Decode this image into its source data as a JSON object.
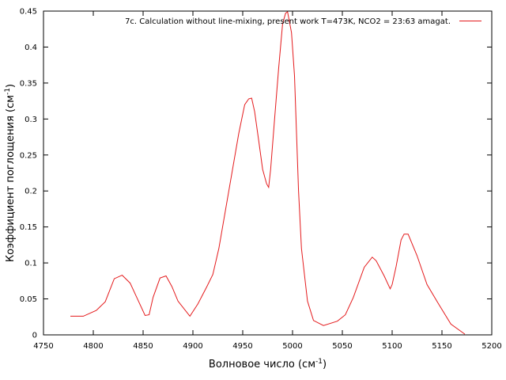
{
  "chart_data": {
    "type": "line",
    "xlabel": "Волновое число (см",
    "xlabel_sup": "-1",
    "xlabel_end": ")",
    "ylabel": "Коэффициент поглощения (см",
    "ylabel_sup": "-1",
    "ylabel_end": ")",
    "xlim": [
      4750,
      5200
    ],
    "ylim": [
      0,
      0.45
    ],
    "xticks": [
      "4750",
      "4800",
      "4850",
      "4900",
      "4950",
      "5000",
      "5050",
      "5100",
      "5150",
      "5200"
    ],
    "yticks": [
      "0",
      "0.05",
      "0.1",
      "0.15",
      "0.2",
      "0.25",
      "0.3",
      "0.35",
      "0.4",
      "0.45"
    ],
    "legend_position": "top-right",
    "grid": false,
    "series": [
      {
        "name": "7c. Calculation without line-mixing, present work T=473K, NCO2 = 23:63 amagat.",
        "color": "#e41a1c",
        "x": [
          4777,
          4790,
          4803,
          4812,
          4821,
          4829,
          4837,
          4845,
          4852,
          4856,
          4860,
          4867,
          4873,
          4879,
          4885,
          4897,
          4905,
          4914,
          4920,
          4926,
          4936,
          4946,
          4952,
          4956,
          4959,
          4962,
          4966,
          4970,
          4974,
          4976,
          4978,
          4982,
          4986,
          4990,
          4993,
          4995,
          4999,
          5002,
          5006,
          5009,
          5015,
          5021,
          5031,
          5045,
          5053,
          5061,
          5072,
          5080,
          5084,
          5092,
          5098,
          5100,
          5104,
          5109,
          5112,
          5116,
          5125,
          5135,
          5147,
          5159,
          5173
        ],
        "y": [
          0.026,
          0.026,
          0.034,
          0.046,
          0.078,
          0.083,
          0.072,
          0.048,
          0.027,
          0.028,
          0.052,
          0.079,
          0.082,
          0.067,
          0.047,
          0.026,
          0.043,
          0.067,
          0.084,
          0.12,
          0.2,
          0.28,
          0.32,
          0.328,
          0.329,
          0.31,
          0.27,
          0.23,
          0.21,
          0.205,
          0.23,
          0.3,
          0.37,
          0.432,
          0.447,
          0.449,
          0.42,
          0.36,
          0.2,
          0.12,
          0.047,
          0.02,
          0.013,
          0.019,
          0.028,
          0.052,
          0.094,
          0.108,
          0.103,
          0.082,
          0.064,
          0.07,
          0.095,
          0.132,
          0.14,
          0.14,
          0.11,
          0.07,
          0.042,
          0.015,
          0.001
        ]
      }
    ]
  }
}
